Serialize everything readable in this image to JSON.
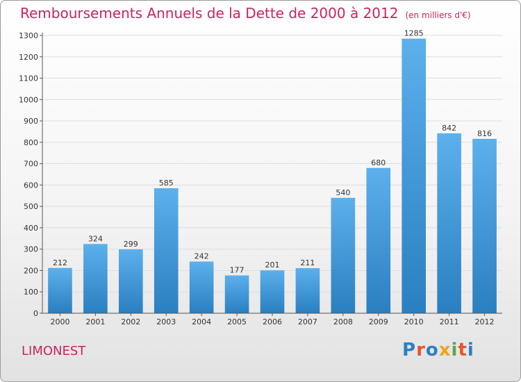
{
  "header": {
    "title": "Remboursements Annuels de la Dette de 2000 à 2012",
    "unit": "(en milliers d'€)"
  },
  "footer": {
    "commune": "LIMONEST",
    "logo": {
      "letters": [
        "P",
        "r",
        "o",
        "x",
        "i",
        "t",
        "i"
      ],
      "colors": [
        "#2e7fc2",
        "#e8552a",
        "#2e7fc2",
        "#f0a11d",
        "#5aa84f",
        "#e8552a",
        "#2e7fc2"
      ]
    }
  },
  "chart_data": {
    "type": "bar",
    "categories": [
      "2000",
      "2001",
      "2002",
      "2003",
      "2004",
      "2005",
      "2006",
      "2007",
      "2008",
      "2009",
      "2010",
      "2011",
      "2012"
    ],
    "values": [
      212,
      324,
      299,
      585,
      242,
      177,
      201,
      211,
      540,
      680,
      1285,
      842,
      816
    ],
    "value_labels": [
      "212",
      "324",
      "299",
      "585",
      "242",
      "177",
      "201",
      "211",
      "540",
      "680",
      "1285",
      "842",
      "816"
    ],
    "ylim": [
      0,
      1300
    ],
    "yticks": [
      0,
      100,
      200,
      300,
      400,
      500,
      600,
      700,
      800,
      900,
      1000,
      1100,
      1200,
      1300
    ],
    "ytick_labels": [
      "0",
      "100",
      "200",
      "300",
      "400",
      "500",
      "600",
      "700",
      "800",
      "900",
      "1000",
      "1100",
      "1200",
      "1300"
    ],
    "grid": true,
    "colors": {
      "bar_light": "#5cb0ec",
      "bar_dark": "#2a7fc0",
      "grid": "#dddddd"
    }
  }
}
